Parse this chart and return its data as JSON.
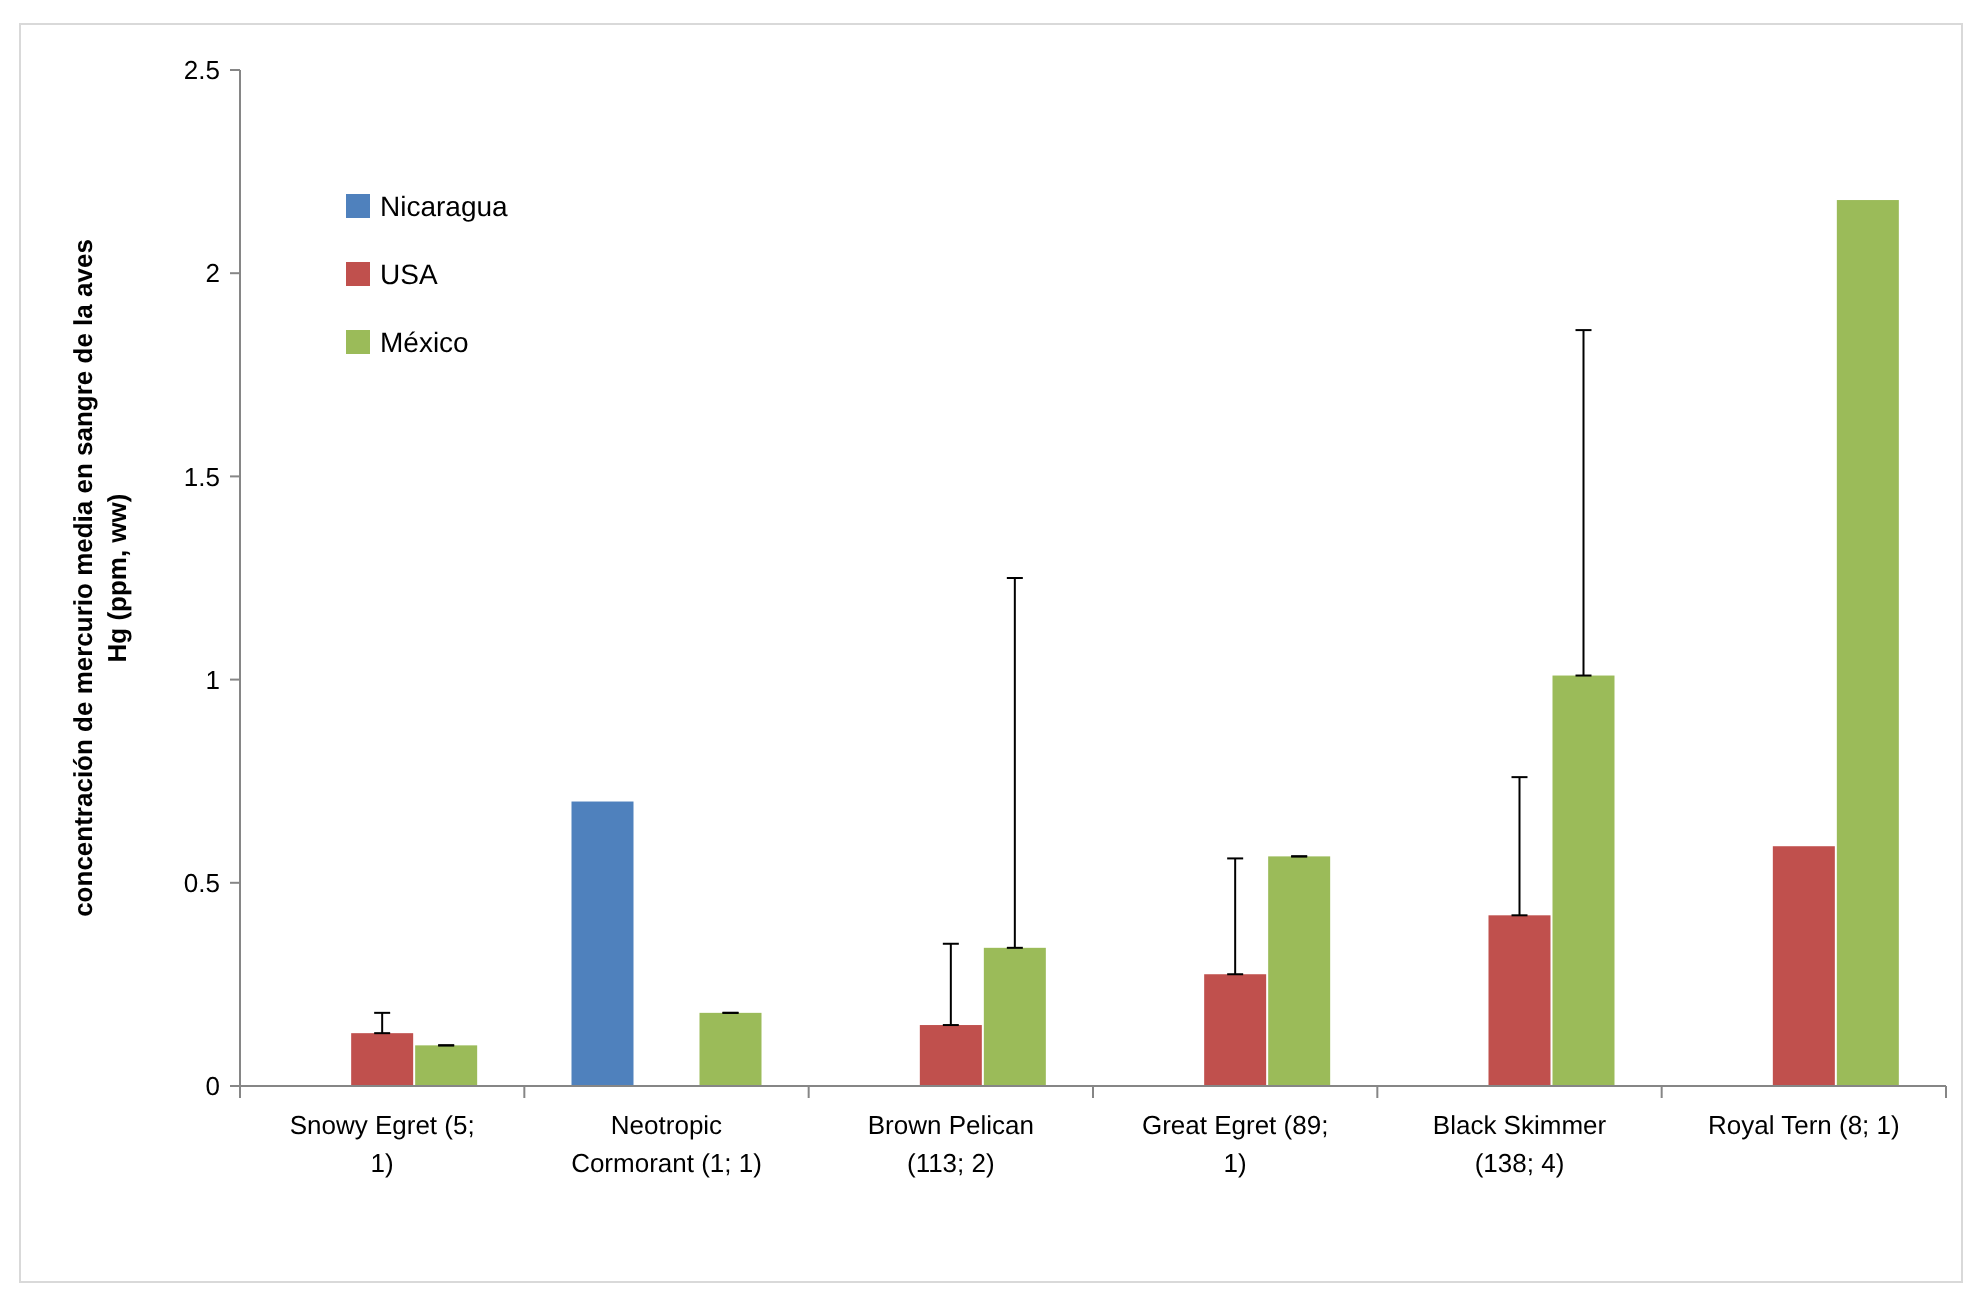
{
  "chart_data": {
    "type": "bar",
    "ylabel": "concentración de mercurio media en sangre de la aves\nHg (ppm, ww)",
    "categories": [
      "Snowy Egret (5; 1)",
      "Neotropic Cormorant (1; 1)",
      "Brown Pelican (113; 2)",
      "Great Egret (89; 1)",
      "Black Skimmer (138; 4)",
      "Royal Tern (8; 1)"
    ],
    "series": [
      {
        "name": "Nicaragua",
        "color": "#4f81bd",
        "values": [
          null,
          0.7,
          null,
          null,
          null,
          null
        ]
      },
      {
        "name": "USA",
        "color": "#c0504d",
        "values": [
          0.13,
          null,
          0.15,
          0.275,
          0.42,
          0.59
        ],
        "errors": [
          [
            0.13,
            0.18
          ],
          null,
          [
            0.15,
            0.35
          ],
          [
            0.275,
            0.56
          ],
          [
            0.42,
            0.76
          ],
          null
        ]
      },
      {
        "name": "México",
        "color": "#9bbb59",
        "values": [
          0.1,
          0.18,
          0.34,
          0.565,
          1.01,
          2.18
        ],
        "errors": [
          [
            0.1,
            0.1
          ],
          [
            0.18,
            0.18
          ],
          [
            0.34,
            1.25
          ],
          [
            0.565,
            0.565
          ],
          [
            1.01,
            1.86
          ],
          null
        ]
      }
    ],
    "ylim": [
      0,
      2.5
    ],
    "yticks": [
      0,
      0.5,
      1,
      1.5,
      2,
      2.5
    ],
    "grid": false,
    "legend": "top left"
  }
}
